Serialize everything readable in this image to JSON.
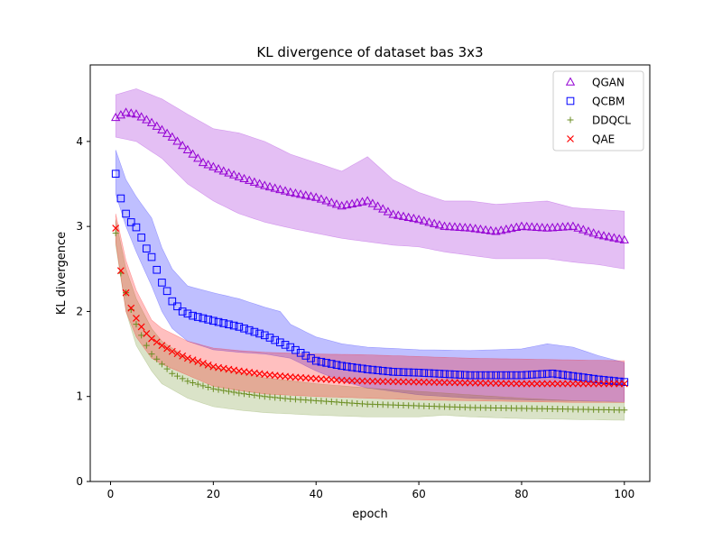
{
  "chart_data": {
    "type": "line",
    "title": "KL divergence of dataset bas 3x3",
    "xlabel": "epoch",
    "ylabel": "KL divergence",
    "xlim": [
      -3.95,
      104.95
    ],
    "ylim": [
      0,
      4.9
    ],
    "xticks": [
      0,
      20,
      40,
      60,
      80,
      100
    ],
    "yticks": [
      0,
      1,
      2,
      3,
      4
    ],
    "grid": false,
    "legend_position": "top-right",
    "x_start": 1,
    "series": [
      {
        "name": "QGAN",
        "color": "#9400d3",
        "marker": "triangle",
        "anchors": [
          [
            1,
            4.28
          ],
          [
            3,
            4.34
          ],
          [
            5,
            4.32
          ],
          [
            8,
            4.22
          ],
          [
            12,
            4.05
          ],
          [
            15,
            3.9
          ],
          [
            18,
            3.75
          ],
          [
            22,
            3.65
          ],
          [
            26,
            3.56
          ],
          [
            30,
            3.48
          ],
          [
            35,
            3.4
          ],
          [
            40,
            3.34
          ],
          [
            45,
            3.24
          ],
          [
            50,
            3.3
          ],
          [
            55,
            3.14
          ],
          [
            60,
            3.08
          ],
          [
            65,
            3.0
          ],
          [
            70,
            2.98
          ],
          [
            75,
            2.94
          ],
          [
            80,
            3.0
          ],
          [
            85,
            2.98
          ],
          [
            90,
            3.0
          ],
          [
            95,
            2.9
          ],
          [
            100,
            2.84
          ]
        ],
        "band_upper": [
          [
            1,
            4.55
          ],
          [
            5,
            4.62
          ],
          [
            10,
            4.5
          ],
          [
            15,
            4.32
          ],
          [
            20,
            4.15
          ],
          [
            25,
            4.1
          ],
          [
            30,
            4.0
          ],
          [
            35,
            3.85
          ],
          [
            40,
            3.75
          ],
          [
            45,
            3.65
          ],
          [
            50,
            3.82
          ],
          [
            55,
            3.55
          ],
          [
            60,
            3.4
          ],
          [
            65,
            3.3
          ],
          [
            70,
            3.3
          ],
          [
            75,
            3.26
          ],
          [
            80,
            3.28
          ],
          [
            85,
            3.3
          ],
          [
            90,
            3.22
          ],
          [
            95,
            3.2
          ],
          [
            100,
            3.18
          ]
        ],
        "band_lower": [
          [
            1,
            4.05
          ],
          [
            5,
            4.0
          ],
          [
            10,
            3.8
          ],
          [
            15,
            3.5
          ],
          [
            20,
            3.3
          ],
          [
            25,
            3.15
          ],
          [
            30,
            3.05
          ],
          [
            35,
            2.98
          ],
          [
            40,
            2.92
          ],
          [
            45,
            2.86
          ],
          [
            50,
            2.82
          ],
          [
            55,
            2.78
          ],
          [
            60,
            2.76
          ],
          [
            65,
            2.7
          ],
          [
            70,
            2.66
          ],
          [
            75,
            2.62
          ],
          [
            80,
            2.62
          ],
          [
            85,
            2.62
          ],
          [
            90,
            2.58
          ],
          [
            95,
            2.55
          ],
          [
            100,
            2.5
          ]
        ]
      },
      {
        "name": "QCBM",
        "color": "#0000ff",
        "marker": "square",
        "anchors": [
          [
            1,
            3.62
          ],
          [
            2,
            3.33
          ],
          [
            3,
            3.15
          ],
          [
            4,
            3.05
          ],
          [
            5,
            2.99
          ],
          [
            6,
            2.87
          ],
          [
            7,
            2.74
          ],
          [
            8,
            2.64
          ],
          [
            9,
            2.49
          ],
          [
            10,
            2.34
          ],
          [
            11,
            2.24
          ],
          [
            12,
            2.12
          ],
          [
            14,
            2.0
          ],
          [
            16,
            1.95
          ],
          [
            20,
            1.89
          ],
          [
            25,
            1.82
          ],
          [
            30,
            1.72
          ],
          [
            35,
            1.58
          ],
          [
            38,
            1.48
          ],
          [
            40,
            1.42
          ],
          [
            45,
            1.36
          ],
          [
            50,
            1.32
          ],
          [
            55,
            1.29
          ],
          [
            60,
            1.28
          ],
          [
            70,
            1.25
          ],
          [
            80,
            1.25
          ],
          [
            86,
            1.27
          ],
          [
            90,
            1.24
          ],
          [
            95,
            1.2
          ],
          [
            100,
            1.17
          ]
        ],
        "band_upper": [
          [
            1,
            3.9
          ],
          [
            3,
            3.55
          ],
          [
            5,
            3.35
          ],
          [
            8,
            3.1
          ],
          [
            10,
            2.75
          ],
          [
            12,
            2.5
          ],
          [
            15,
            2.3
          ],
          [
            20,
            2.22
          ],
          [
            25,
            2.15
          ],
          [
            30,
            2.05
          ],
          [
            33,
            2.0
          ],
          [
            35,
            1.85
          ],
          [
            40,
            1.7
          ],
          [
            45,
            1.62
          ],
          [
            50,
            1.58
          ],
          [
            60,
            1.55
          ],
          [
            70,
            1.54
          ],
          [
            80,
            1.56
          ],
          [
            85,
            1.62
          ],
          [
            90,
            1.58
          ],
          [
            95,
            1.48
          ],
          [
            100,
            1.4
          ]
        ],
        "band_lower": [
          [
            1,
            3.38
          ],
          [
            3,
            3.0
          ],
          [
            5,
            2.7
          ],
          [
            8,
            2.3
          ],
          [
            10,
            2.0
          ],
          [
            12,
            1.8
          ],
          [
            15,
            1.65
          ],
          [
            20,
            1.55
          ],
          [
            25,
            1.52
          ],
          [
            30,
            1.5
          ],
          [
            35,
            1.45
          ],
          [
            40,
            1.3
          ],
          [
            45,
            1.18
          ],
          [
            50,
            1.1
          ],
          [
            60,
            1.02
          ],
          [
            70,
            0.98
          ],
          [
            80,
            0.96
          ],
          [
            90,
            0.95
          ],
          [
            100,
            0.94
          ]
        ]
      },
      {
        "name": "DDQCL",
        "color": "#6b8e23",
        "marker": "plus",
        "anchors": [
          [
            1,
            2.92
          ],
          [
            2,
            2.45
          ],
          [
            3,
            2.22
          ],
          [
            4,
            2.02
          ],
          [
            5,
            1.85
          ],
          [
            6,
            1.72
          ],
          [
            7,
            1.6
          ],
          [
            8,
            1.5
          ],
          [
            10,
            1.38
          ],
          [
            12,
            1.27
          ],
          [
            15,
            1.18
          ],
          [
            20,
            1.09
          ],
          [
            25,
            1.04
          ],
          [
            30,
            1.0
          ],
          [
            35,
            0.97
          ],
          [
            40,
            0.95
          ],
          [
            45,
            0.93
          ],
          [
            50,
            0.91
          ],
          [
            60,
            0.89
          ],
          [
            70,
            0.87
          ],
          [
            80,
            0.86
          ],
          [
            90,
            0.85
          ],
          [
            100,
            0.84
          ]
        ],
        "band_upper": [
          [
            1,
            3.08
          ],
          [
            3,
            2.5
          ],
          [
            5,
            2.15
          ],
          [
            8,
            1.8
          ],
          [
            10,
            1.65
          ],
          [
            15,
            1.45
          ],
          [
            20,
            1.35
          ],
          [
            25,
            1.28
          ],
          [
            30,
            1.22
          ],
          [
            40,
            1.15
          ],
          [
            50,
            1.1
          ],
          [
            60,
            1.06
          ],
          [
            70,
            1.02
          ],
          [
            80,
            0.98
          ],
          [
            90,
            0.95
          ],
          [
            100,
            0.93
          ]
        ],
        "band_lower": [
          [
            1,
            2.78
          ],
          [
            3,
            2.0
          ],
          [
            5,
            1.6
          ],
          [
            8,
            1.3
          ],
          [
            10,
            1.15
          ],
          [
            15,
            0.98
          ],
          [
            20,
            0.88
          ],
          [
            25,
            0.84
          ],
          [
            30,
            0.81
          ],
          [
            40,
            0.78
          ],
          [
            50,
            0.76
          ],
          [
            60,
            0.76
          ],
          [
            65,
            0.78
          ],
          [
            70,
            0.76
          ],
          [
            80,
            0.74
          ],
          [
            90,
            0.73
          ],
          [
            100,
            0.72
          ]
        ]
      },
      {
        "name": "QAE",
        "color": "#ff0000",
        "marker": "x",
        "anchors": [
          [
            1,
            2.98
          ],
          [
            2,
            2.48
          ],
          [
            3,
            2.22
          ],
          [
            4,
            2.04
          ],
          [
            5,
            1.92
          ],
          [
            6,
            1.82
          ],
          [
            7,
            1.74
          ],
          [
            8,
            1.68
          ],
          [
            10,
            1.6
          ],
          [
            12,
            1.53
          ],
          [
            15,
            1.45
          ],
          [
            20,
            1.35
          ],
          [
            25,
            1.3
          ],
          [
            30,
            1.26
          ],
          [
            35,
            1.23
          ],
          [
            40,
            1.21
          ],
          [
            45,
            1.19
          ],
          [
            50,
            1.18
          ],
          [
            60,
            1.17
          ],
          [
            70,
            1.16
          ],
          [
            80,
            1.15
          ],
          [
            90,
            1.15
          ],
          [
            100,
            1.15
          ]
        ],
        "band_upper": [
          [
            1,
            3.15
          ],
          [
            3,
            2.6
          ],
          [
            5,
            2.25
          ],
          [
            8,
            1.9
          ],
          [
            10,
            1.8
          ],
          [
            15,
            1.65
          ],
          [
            20,
            1.57
          ],
          [
            25,
            1.54
          ],
          [
            30,
            1.52
          ],
          [
            40,
            1.5
          ],
          [
            50,
            1.49
          ],
          [
            60,
            1.47
          ],
          [
            70,
            1.45
          ],
          [
            80,
            1.44
          ],
          [
            90,
            1.43
          ],
          [
            100,
            1.42
          ]
        ],
        "band_lower": [
          [
            1,
            2.82
          ],
          [
            3,
            2.0
          ],
          [
            5,
            1.7
          ],
          [
            8,
            1.45
          ],
          [
            10,
            1.38
          ],
          [
            15,
            1.25
          ],
          [
            20,
            1.12
          ],
          [
            25,
            1.07
          ],
          [
            30,
            1.03
          ],
          [
            40,
            1.0
          ],
          [
            50,
            0.98
          ],
          [
            60,
            0.96
          ],
          [
            70,
            0.95
          ],
          [
            80,
            0.94
          ],
          [
            90,
            0.93
          ],
          [
            100,
            0.93
          ]
        ]
      }
    ]
  }
}
